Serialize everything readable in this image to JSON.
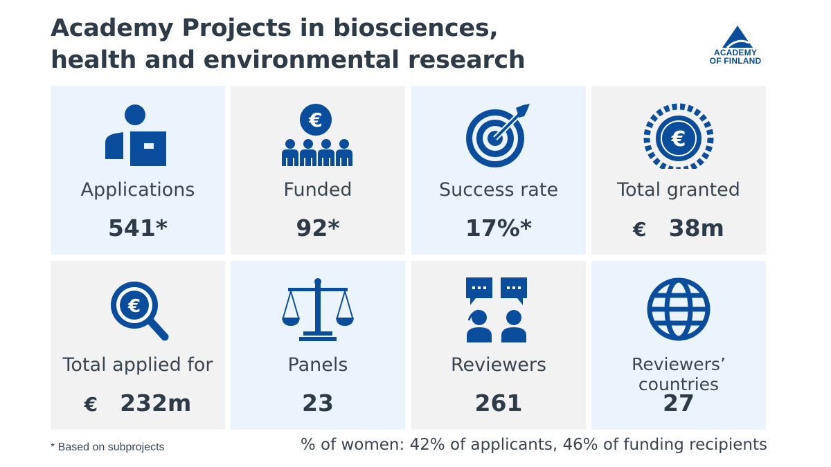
{
  "title_line1": "Academy Projects in biosciences,",
  "title_line2": "health and environmental research",
  "logo": {
    "line1": "ACADEMY",
    "line2": "OF FINLAND",
    "brand_color": "#0a4d9c"
  },
  "tiles": [
    {
      "label": "Applications",
      "value": "541*",
      "icon": "applicant-icon"
    },
    {
      "label": "Funded",
      "value": "92*",
      "icon": "funded-group-euro-icon"
    },
    {
      "label": "Success rate",
      "value": "17%*",
      "icon": "target-icon"
    },
    {
      "label": "Total granted",
      "currency": "€",
      "value": "38",
      "unit": "m",
      "icon": "euro-coin-icon"
    },
    {
      "label": "Total applied for",
      "currency": "€",
      "value": "232",
      "unit": "m",
      "icon": "euro-magnifier-icon"
    },
    {
      "label": "Panels",
      "value": "23",
      "icon": "scales-icon"
    },
    {
      "label": "Reviewers",
      "value": "261",
      "icon": "reviewers-chat-icon"
    },
    {
      "label": "Reviewers’ countries",
      "value": "27",
      "icon": "globe-icon"
    }
  ],
  "footnote": "* Based on subprojects",
  "women": {
    "prefix": "% of women: ",
    "v1": "42%",
    "t1": " of applicants, ",
    "v2": "46%",
    "t2": " of funding recipients"
  },
  "colors": {
    "icon": "#0a4d9c",
    "tile_blue": "#ebf4fc",
    "tile_grey": "#f2f2f2",
    "text": "#2d3a48"
  }
}
